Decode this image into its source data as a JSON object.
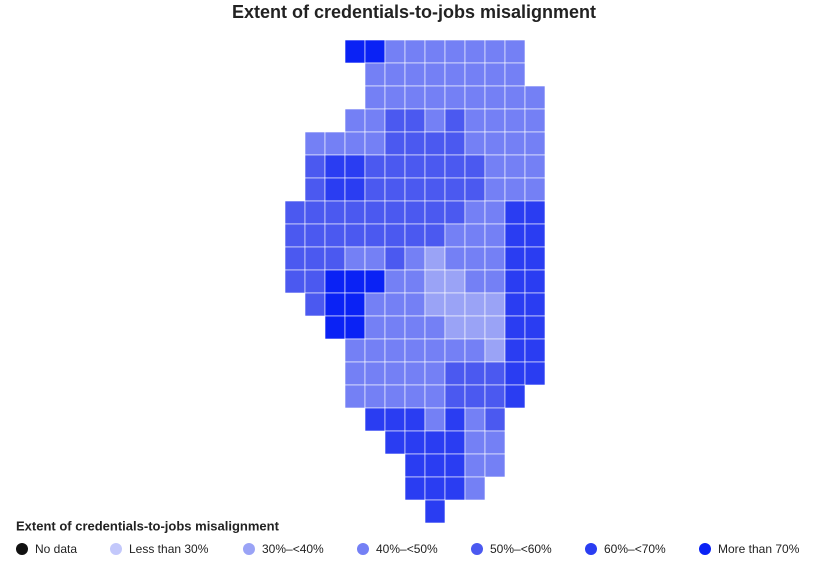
{
  "title": "Extent of credentials-to-jobs misalignment",
  "legend": {
    "title": "Extent of credentials-to-jobs misalignment",
    "items": [
      {
        "label": "No data",
        "color": "#111111"
      },
      {
        "label": "Less than 30%",
        "color": "#c3c8fb"
      },
      {
        "label": "30%–<40%",
        "color": "#9aa3f6"
      },
      {
        "label": "40%–<50%",
        "color": "#7480f5"
      },
      {
        "label": "50%–<60%",
        "color": "#4b59f0"
      },
      {
        "label": "60%–<70%",
        "color": "#2a3df2"
      },
      {
        "label": "More than 70%",
        "color": "#0a22f5"
      }
    ]
  },
  "map": {
    "regions": [
      [
        null,
        null,
        null,
        6,
        6,
        3,
        3,
        3,
        3,
        3,
        3,
        3,
        null
      ],
      [
        null,
        null,
        null,
        null,
        3,
        3,
        3,
        3,
        3,
        3,
        3,
        3,
        null
      ],
      [
        null,
        null,
        null,
        null,
        3,
        3,
        3,
        3,
        3,
        3,
        3,
        3,
        3
      ],
      [
        null,
        null,
        null,
        3,
        3,
        4,
        4,
        3,
        4,
        3,
        3,
        3,
        3
      ],
      [
        null,
        3,
        3,
        3,
        3,
        4,
        4,
        4,
        4,
        3,
        3,
        3,
        3
      ],
      [
        null,
        4,
        5,
        5,
        4,
        4,
        4,
        4,
        4,
        4,
        3,
        3,
        3
      ],
      [
        null,
        4,
        5,
        5,
        4,
        4,
        4,
        4,
        4,
        4,
        3,
        3,
        3
      ],
      [
        4,
        4,
        4,
        4,
        4,
        4,
        4,
        4,
        4,
        3,
        3,
        5,
        5
      ],
      [
        4,
        4,
        4,
        4,
        4,
        4,
        4,
        4,
        3,
        3,
        3,
        5,
        5
      ],
      [
        4,
        4,
        4,
        3,
        3,
        4,
        3,
        2,
        3,
        3,
        3,
        5,
        5
      ],
      [
        4,
        4,
        6,
        6,
        6,
        3,
        3,
        2,
        2,
        3,
        3,
        5,
        5
      ],
      [
        null,
        4,
        6,
        6,
        3,
        3,
        3,
        2,
        2,
        2,
        2,
        5,
        5
      ],
      [
        null,
        null,
        6,
        6,
        3,
        3,
        3,
        3,
        2,
        2,
        2,
        5,
        5
      ],
      [
        null,
        null,
        null,
        3,
        3,
        3,
        3,
        3,
        3,
        3,
        2,
        5,
        5
      ],
      [
        null,
        null,
        null,
        3,
        3,
        3,
        3,
        3,
        4,
        4,
        4,
        5,
        5
      ],
      [
        null,
        null,
        null,
        3,
        3,
        3,
        3,
        3,
        4,
        4,
        4,
        5,
        null
      ],
      [
        null,
        null,
        null,
        null,
        5,
        5,
        5,
        3,
        5,
        3,
        4,
        null,
        null
      ],
      [
        null,
        null,
        null,
        null,
        null,
        5,
        5,
        5,
        5,
        3,
        3,
        null,
        null
      ],
      [
        null,
        null,
        null,
        null,
        null,
        null,
        5,
        5,
        5,
        3,
        3,
        null,
        null
      ],
      [
        null,
        null,
        null,
        null,
        null,
        null,
        5,
        5,
        5,
        3,
        null,
        null,
        null
      ],
      [
        null,
        null,
        null,
        null,
        null,
        null,
        null,
        5,
        null,
        null,
        null,
        null,
        null
      ]
    ]
  }
}
